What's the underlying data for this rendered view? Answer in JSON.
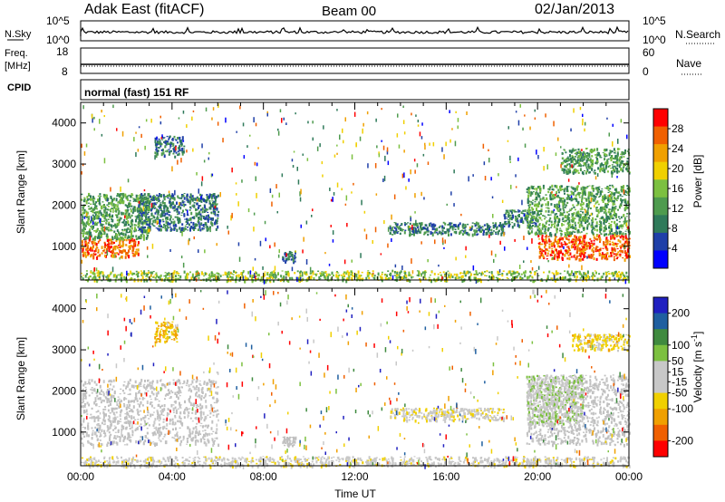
{
  "header": {
    "station": "Adak East (fitACF)",
    "beam": "Beam 00",
    "date": "02/Jan/2013"
  },
  "nsky_panel": {
    "left_label": "N.Sky",
    "right_label": "N.Search",
    "left_ticks": [
      "10^5",
      "10^0"
    ],
    "right_ticks": [
      "10^5",
      "10^0"
    ]
  },
  "freq_panel": {
    "left_label_1": "Freq.",
    "left_label_2": "[MHz]",
    "right_label": "Nave",
    "left_ticks": [
      "18",
      "8"
    ],
    "right_ticks": [
      "60",
      "0"
    ]
  },
  "cpid_panel": {
    "label": "CPID",
    "mode_text": "normal (fast) 151 RF"
  },
  "colors": {
    "power_scale": [
      "#0000ff",
      "#1f3fa8",
      "#2f7a5a",
      "#4e9b4e",
      "#7cc040",
      "#f0d000",
      "#f0a000",
      "#f06000",
      "#ff0000"
    ],
    "velocity_scale": [
      "#ff0000",
      "#f06000",
      "#f0a000",
      "#f0d000",
      "#c8c8c8",
      "#c8c8c8",
      "#7cc040",
      "#3f8a3f",
      "#1f5fa0",
      "#2020c0"
    ],
    "ground_scatter": "#c0c0c0"
  },
  "chart_data": [
    {
      "type": "heatmap",
      "title": "",
      "xlabel": "",
      "ylabel": "Slant Range [km]",
      "xlim": [
        "00:00",
        "00:00"
      ],
      "ylim": [
        180,
        4500
      ],
      "y_ticks": [
        1000,
        2000,
        3000,
        4000
      ],
      "colorbar_label": "Power [dB]",
      "colorbar_ticks": [
        4,
        8,
        12,
        16,
        20,
        24,
        28
      ],
      "colorbar_range": [
        0,
        32
      ],
      "features": [
        {
          "start_h": 0.0,
          "end_h": 2.5,
          "range_km": [
            750,
            1200
          ],
          "level_db": 27
        },
        {
          "start_h": 0.0,
          "end_h": 3.0,
          "range_km": [
            1200,
            2300
          ],
          "level_db": 12
        },
        {
          "start_h": 2.5,
          "end_h": 6.0,
          "range_km": [
            1400,
            2300
          ],
          "level_db": 9
        },
        {
          "start_h": 3.2,
          "end_h": 4.5,
          "range_km": [
            3200,
            3700
          ],
          "level_db": 9
        },
        {
          "start_h": 8.8,
          "end_h": 9.4,
          "range_km": [
            650,
            900
          ],
          "level_db": 6
        },
        {
          "start_h": 13.5,
          "end_h": 18.5,
          "range_km": [
            1300,
            1600
          ],
          "level_db": 6
        },
        {
          "start_h": 18.5,
          "end_h": 20.0,
          "range_km": [
            1500,
            1900
          ],
          "level_db": 7
        },
        {
          "start_h": 20.0,
          "end_h": 24.0,
          "range_km": [
            700,
            1300
          ],
          "level_db": 27
        },
        {
          "start_h": 19.5,
          "end_h": 24.0,
          "range_km": [
            1300,
            2500
          ],
          "level_db": 13
        },
        {
          "start_h": 21.0,
          "end_h": 24.0,
          "range_km": [
            2800,
            3400
          ],
          "level_db": 12
        },
        {
          "start_h": 0.0,
          "end_h": 24.0,
          "range_km": [
            180,
            420
          ],
          "level_db": 15
        }
      ]
    },
    {
      "type": "heatmap",
      "title": "",
      "xlabel": "Time UT",
      "ylabel": "Slant Range [km]",
      "x_ticks": [
        "00:00",
        "04:00",
        "08:00",
        "12:00",
        "16:00",
        "20:00",
        "00:00"
      ],
      "xlim": [
        "00:00",
        "00:00"
      ],
      "ylim": [
        180,
        4500
      ],
      "y_ticks": [
        1000,
        2000,
        3000,
        4000
      ],
      "colorbar_label": "Velocity [m s^-1]",
      "colorbar_ticks": [
        -200,
        -100,
        -50,
        -15,
        15,
        50,
        100,
        200
      ],
      "colorbar_range": [
        -250,
        250
      ],
      "features": [
        {
          "start_h": 0.0,
          "end_h": 6.0,
          "range_km": [
            700,
            2300
          ],
          "velocity_ms": 0,
          "ground_scatter": true
        },
        {
          "start_h": 3.2,
          "end_h": 4.2,
          "range_km": [
            3200,
            3700
          ],
          "velocity_ms": -120
        },
        {
          "start_h": 8.8,
          "end_h": 9.4,
          "range_km": [
            650,
            900
          ],
          "velocity_ms": 0,
          "ground_scatter": true
        },
        {
          "start_h": 13.5,
          "end_h": 18.5,
          "range_km": [
            1300,
            1600
          ],
          "velocity_ms": -40
        },
        {
          "start_h": 19.5,
          "end_h": 24.0,
          "range_km": [
            700,
            2400
          ],
          "velocity_ms": 0,
          "ground_scatter": true
        },
        {
          "start_h": 19.5,
          "end_h": 22.0,
          "range_km": [
            1200,
            2400
          ],
          "velocity_ms": 40
        },
        {
          "start_h": 21.5,
          "end_h": 24.0,
          "range_km": [
            3000,
            3400
          ],
          "velocity_ms": -80
        },
        {
          "start_h": 0.0,
          "end_h": 24.0,
          "range_km": [
            180,
            420
          ],
          "velocity_ms": -30
        }
      ]
    }
  ],
  "time_axis": {
    "ticks": [
      "00:00",
      "04:00",
      "08:00",
      "12:00",
      "16:00",
      "20:00",
      "00:00"
    ],
    "label": "Time UT"
  }
}
